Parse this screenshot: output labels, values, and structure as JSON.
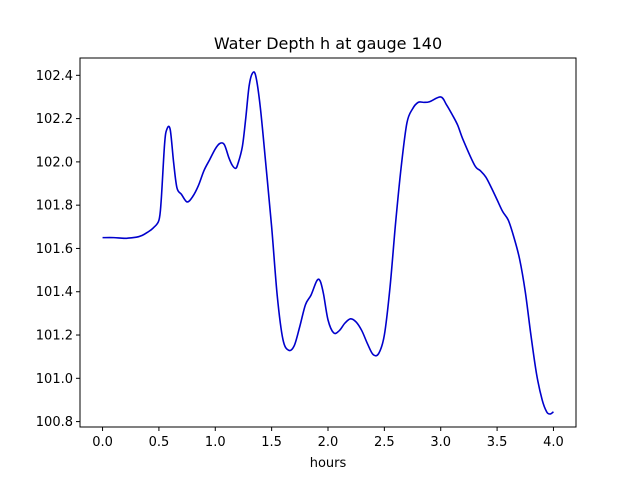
{
  "chart_data": {
    "type": "line",
    "title": "Water Depth h at gauge 140",
    "xlabel": "hours",
    "ylabel": "",
    "xlim": [
      -0.2,
      4.2
    ],
    "ylim": [
      100.775,
      102.48
    ],
    "xticks": [
      0.0,
      0.5,
      1.0,
      1.5,
      2.0,
      2.5,
      3.0,
      3.5,
      4.0
    ],
    "xtick_labels": [
      "0.0",
      "0.5",
      "1.0",
      "1.5",
      "2.0",
      "2.5",
      "3.0",
      "3.5",
      "4.0"
    ],
    "yticks": [
      100.8,
      101.0,
      101.2,
      101.4,
      101.6,
      101.8,
      102.0,
      102.2,
      102.4
    ],
    "ytick_labels": [
      "100.8",
      "101.0",
      "101.2",
      "101.4",
      "101.6",
      "101.8",
      "102.0",
      "102.2",
      "102.4"
    ],
    "grid": false,
    "series": [
      {
        "color": "#0000cc",
        "x": [
          0.0,
          0.1,
          0.2,
          0.3,
          0.35,
          0.4,
          0.45,
          0.5,
          0.52,
          0.55,
          0.57,
          0.6,
          0.63,
          0.66,
          0.7,
          0.75,
          0.8,
          0.85,
          0.9,
          0.95,
          1.0,
          1.04,
          1.08,
          1.12,
          1.15,
          1.18,
          1.2,
          1.24,
          1.27,
          1.3,
          1.33,
          1.36,
          1.4,
          1.45,
          1.5,
          1.55,
          1.6,
          1.65,
          1.7,
          1.75,
          1.8,
          1.85,
          1.9,
          1.93,
          1.96,
          2.0,
          2.05,
          2.1,
          2.15,
          2.2,
          2.25,
          2.3,
          2.35,
          2.4,
          2.45,
          2.5,
          2.55,
          2.6,
          2.65,
          2.7,
          2.75,
          2.8,
          2.85,
          2.9,
          3.0,
          3.05,
          3.1,
          3.15,
          3.2,
          3.3,
          3.35,
          3.4,
          3.45,
          3.5,
          3.55,
          3.6,
          3.65,
          3.7,
          3.75,
          3.8,
          3.85,
          3.9,
          3.94,
          3.97,
          4.0
        ],
        "y": [
          101.65,
          101.65,
          101.647,
          101.652,
          101.66,
          101.675,
          101.695,
          101.73,
          101.82,
          102.08,
          102.15,
          102.15,
          102.0,
          101.88,
          101.85,
          101.815,
          101.84,
          101.89,
          101.96,
          102.01,
          102.06,
          102.085,
          102.08,
          102.02,
          101.985,
          101.97,
          101.99,
          102.07,
          102.2,
          102.35,
          102.41,
          102.395,
          102.25,
          101.98,
          101.7,
          101.38,
          101.18,
          101.13,
          101.15,
          101.24,
          101.34,
          101.385,
          101.45,
          101.45,
          101.39,
          101.27,
          101.21,
          101.22,
          101.255,
          101.275,
          101.26,
          101.22,
          101.16,
          101.11,
          101.115,
          101.2,
          101.42,
          101.72,
          101.98,
          102.18,
          102.245,
          102.275,
          102.275,
          102.278,
          102.3,
          102.265,
          102.22,
          102.17,
          102.1,
          101.985,
          101.96,
          101.93,
          101.88,
          101.825,
          101.77,
          101.73,
          101.65,
          101.55,
          101.4,
          101.2,
          101.02,
          100.9,
          100.845,
          100.835,
          100.845
        ]
      }
    ]
  }
}
